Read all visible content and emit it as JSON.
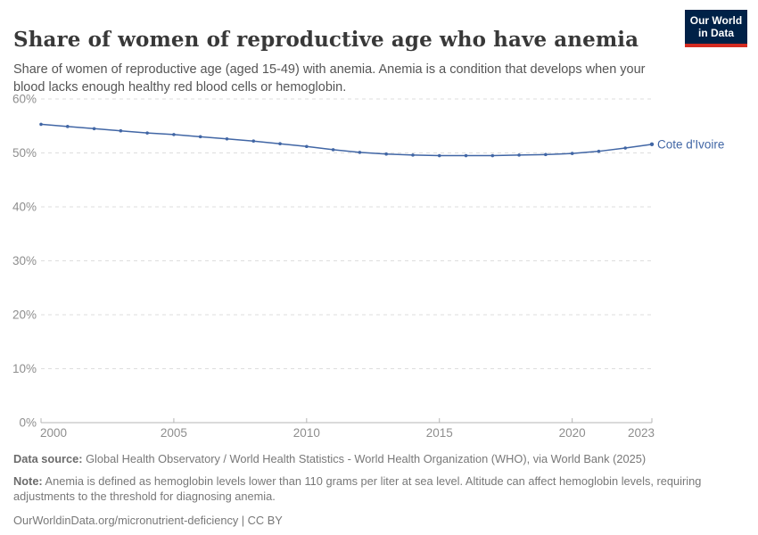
{
  "header": {
    "title": "Share of women of reproductive age who have anemia",
    "subtitle": "Share of women of reproductive age (aged 15-49) with anemia. Anemia is a condition that develops when your blood lacks enough healthy red blood cells or hemoglobin."
  },
  "logo": {
    "line1": "Our World",
    "line2": "in Data",
    "bg_color": "#002147",
    "bar_color": "#d42b21"
  },
  "chart_data": {
    "type": "line",
    "title": "Share of women of reproductive age who have anemia",
    "x": [
      2000,
      2001,
      2002,
      2003,
      2004,
      2005,
      2006,
      2007,
      2008,
      2009,
      2010,
      2011,
      2012,
      2013,
      2014,
      2015,
      2016,
      2017,
      2018,
      2019,
      2020,
      2021,
      2022,
      2023
    ],
    "series": [
      {
        "name": "Cote d'Ivoire",
        "color": "#4166a5",
        "values": [
          55.3,
          54.9,
          54.5,
          54.1,
          53.7,
          53.4,
          53.0,
          52.6,
          52.2,
          51.7,
          51.2,
          50.6,
          50.1,
          49.8,
          49.6,
          49.5,
          49.5,
          49.5,
          49.6,
          49.7,
          49.9,
          50.3,
          50.9,
          51.6
        ]
      }
    ],
    "unit": "%",
    "xlabel": "",
    "ylabel": "",
    "ylim": [
      0,
      60
    ],
    "yticks": [
      0,
      10,
      20,
      30,
      40,
      50,
      60
    ],
    "xticks": [
      2000,
      2005,
      2010,
      2015,
      2020,
      2023
    ],
    "grid": "horizontal-dashed",
    "legend_position": "end-of-line-label",
    "grid_color": "#dddddd",
    "axis_color": "#b5b5b5",
    "tick_label_color": "#8e8e8e"
  },
  "footer": {
    "data_source_label": "Data source:",
    "data_source_text": " Global Health Observatory / World Health Statistics - World Health Organization (WHO), via World Bank (2025)",
    "note_label": "Note:",
    "note_text": " Anemia is defined as hemoglobin levels lower than 110 grams per liter at sea level. Altitude can affect hemoglobin levels, requiring adjustments to the threshold for diagnosing anemia.",
    "link_line": "OurWorldinData.org/micronutrient-deficiency | CC BY"
  }
}
